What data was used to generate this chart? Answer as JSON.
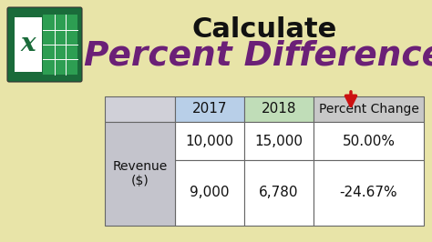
{
  "bg_color": "#e8e4a8",
  "title_calculate": "Calculate",
  "title_percent": "Percent Difference",
  "title_calculate_color": "#111111",
  "title_percent_color": "#6b2077",
  "arrow_color": "#cc1111",
  "col_header_bg_2017": "#b8cfe8",
  "col_header_bg_2018": "#c0ddb8",
  "col_header_bg_pct": "#c8c8c8",
  "row_label_bg": "#c4c4cc",
  "data_row_bg": "#ffffff",
  "excel_green_dark": "#1a6b3a",
  "excel_green_light": "#2d9e52",
  "figw": 4.74,
  "figh": 2.66,
  "dpi": 100,
  "table_header": [
    "",
    "2017",
    "2018",
    "Percent Change"
  ],
  "table_row1": [
    "Revenue\n($)",
    "10,000",
    "15,000",
    "50.00%"
  ],
  "table_row2": [
    "",
    "9,000",
    "6,780",
    "-24.67%"
  ]
}
